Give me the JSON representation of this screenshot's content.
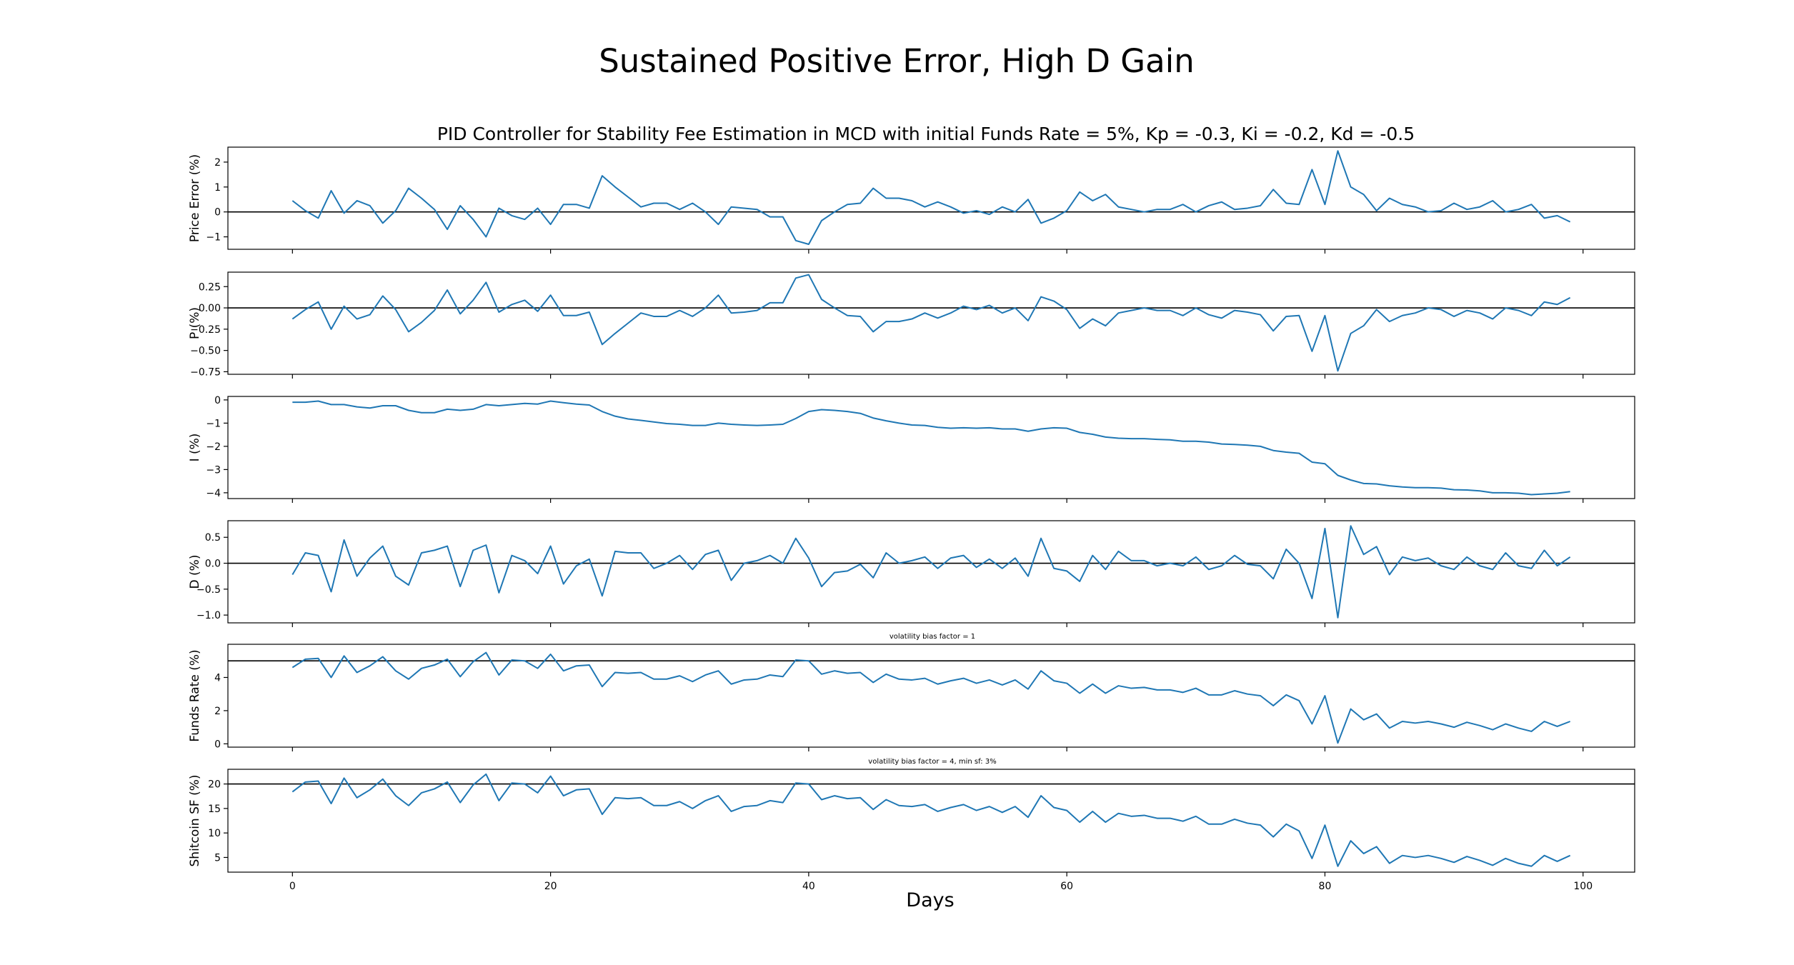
{
  "figure": {
    "suptitle": "Sustained Positive Error, High D Gain",
    "xlabel": "Days",
    "line_color": "#1f77b4",
    "reference_color": "#000000"
  },
  "chart_data": [
    {
      "type": "line",
      "title": "PID Controller for Stability Fee Estimation in MCD with initial Funds Rate = 5%, Kp = -0.3, Ki = -0.2, Kd = -0.5",
      "ylabel": "Price Error (%)",
      "annotation": "",
      "reference_line": 0,
      "xlim": [
        -5,
        104
      ],
      "ylim": [
        -1.5,
        2.6
      ],
      "yticks": [
        -1,
        0,
        1,
        2
      ],
      "ytick_labels": [
        "−1",
        "0",
        "1",
        "2"
      ],
      "values": [
        0.45,
        0.05,
        -0.25,
        0.85,
        -0.05,
        0.45,
        0.25,
        -0.45,
        0.05,
        0.95,
        0.55,
        0.1,
        -0.7,
        0.25,
        -0.3,
        -1.0,
        0.15,
        -0.15,
        -0.3,
        0.15,
        -0.5,
        0.3,
        0.3,
        0.15,
        1.45,
        1.0,
        0.6,
        0.2,
        0.35,
        0.35,
        0.1,
        0.35,
        0.0,
        -0.5,
        0.2,
        0.15,
        0.1,
        -0.2,
        -0.2,
        -1.15,
        -1.3,
        -0.35,
        0.0,
        0.3,
        0.35,
        0.95,
        0.55,
        0.55,
        0.45,
        0.2,
        0.4,
        0.2,
        -0.05,
        0.05,
        -0.1,
        0.2,
        0.0,
        0.5,
        -0.45,
        -0.25,
        0.05,
        0.8,
        0.45,
        0.7,
        0.2,
        0.1,
        0.0,
        0.1,
        0.1,
        0.3,
        0.0,
        0.25,
        0.4,
        0.1,
        0.15,
        0.25,
        0.9,
        0.35,
        0.3,
        1.7,
        0.3,
        2.45,
        1.0,
        0.7,
        0.05,
        0.55,
        0.3,
        0.2,
        0.0,
        0.05,
        0.35,
        0.1,
        0.2,
        0.45,
        0.0,
        0.1,
        0.3,
        -0.25,
        -0.15,
        -0.4
      ]
    },
    {
      "type": "line",
      "title": "",
      "ylabel": "P (%)",
      "annotation": "",
      "reference_line": 0,
      "xlim": [
        -5,
        104
      ],
      "ylim": [
        -0.78,
        0.42
      ],
      "yticks": [
        -0.75,
        -0.5,
        -0.25,
        0.0,
        0.25
      ],
      "ytick_labels": [
        "−0.75",
        "−0.50",
        "−0.25",
        "0.00",
        "0.25"
      ],
      "values": [
        -0.13,
        -0.02,
        0.07,
        -0.25,
        0.02,
        -0.13,
        -0.08,
        0.14,
        -0.02,
        -0.28,
        -0.17,
        -0.03,
        0.21,
        -0.07,
        0.09,
        0.3,
        -0.05,
        0.04,
        0.09,
        -0.04,
        0.15,
        -0.09,
        -0.09,
        -0.05,
        -0.43,
        -0.3,
        -0.18,
        -0.06,
        -0.1,
        -0.1,
        -0.03,
        -0.1,
        0.0,
        0.15,
        -0.06,
        -0.05,
        -0.03,
        0.06,
        0.06,
        0.35,
        0.39,
        0.1,
        0.0,
        -0.09,
        -0.1,
        -0.28,
        -0.16,
        -0.16,
        -0.13,
        -0.06,
        -0.12,
        -0.06,
        0.02,
        -0.02,
        0.03,
        -0.06,
        0.0,
        -0.15,
        0.13,
        0.08,
        -0.02,
        -0.24,
        -0.13,
        -0.21,
        -0.06,
        -0.03,
        0.0,
        -0.03,
        -0.03,
        -0.09,
        0.0,
        -0.08,
        -0.12,
        -0.03,
        -0.05,
        -0.08,
        -0.27,
        -0.1,
        -0.09,
        -0.51,
        -0.09,
        -0.74,
        -0.3,
        -0.21,
        -0.02,
        -0.16,
        -0.09,
        -0.06,
        0.0,
        -0.02,
        -0.1,
        -0.03,
        -0.06,
        -0.13,
        0.0,
        -0.03,
        -0.09,
        0.07,
        0.04,
        0.12
      ]
    },
    {
      "type": "line",
      "title": "",
      "ylabel": "I (%)",
      "annotation": "",
      "reference_line": null,
      "xlim": [
        -5,
        104
      ],
      "ylim": [
        -4.25,
        0.15
      ],
      "yticks": [
        -4,
        -3,
        -2,
        -1,
        0
      ],
      "ytick_labels": [
        "−4",
        "−3",
        "−2",
        "−1",
        "0"
      ],
      "values": [
        -0.1,
        -0.1,
        -0.05,
        -0.2,
        -0.2,
        -0.3,
        -0.35,
        -0.25,
        -0.25,
        -0.45,
        -0.55,
        -0.55,
        -0.4,
        -0.45,
        -0.4,
        -0.2,
        -0.25,
        -0.2,
        -0.15,
        -0.18,
        -0.05,
        -0.12,
        -0.18,
        -0.22,
        -0.5,
        -0.7,
        -0.82,
        -0.88,
        -0.95,
        -1.02,
        -1.05,
        -1.1,
        -1.1,
        -1.0,
        -1.05,
        -1.08,
        -1.1,
        -1.08,
        -1.05,
        -0.8,
        -0.5,
        -0.42,
        -0.45,
        -0.5,
        -0.58,
        -0.78,
        -0.9,
        -1.0,
        -1.08,
        -1.1,
        -1.18,
        -1.22,
        -1.2,
        -1.22,
        -1.2,
        -1.25,
        -1.25,
        -1.35,
        -1.25,
        -1.2,
        -1.22,
        -1.4,
        -1.48,
        -1.6,
        -1.65,
        -1.67,
        -1.67,
        -1.7,
        -1.72,
        -1.78,
        -1.78,
        -1.82,
        -1.9,
        -1.92,
        -1.95,
        -2.0,
        -2.18,
        -2.25,
        -2.3,
        -2.68,
        -2.75,
        -3.25,
        -3.45,
        -3.6,
        -3.62,
        -3.7,
        -3.75,
        -3.78,
        -3.78,
        -3.8,
        -3.87,
        -3.88,
        -3.92,
        -4.0,
        -4.0,
        -4.02,
        -4.08,
        -4.05,
        -4.02,
        -3.95
      ]
    },
    {
      "type": "line",
      "title": "",
      "ylabel": "D (%)",
      "annotation": "",
      "reference_line": 0,
      "xlim": [
        -5,
        104
      ],
      "ylim": [
        -1.15,
        0.82
      ],
      "yticks": [
        -1.0,
        -0.5,
        0.0,
        0.5
      ],
      "ytick_labels": [
        "−1.0",
        "−0.5",
        "0.0",
        "0.5"
      ],
      "values": [
        -0.22,
        0.2,
        0.15,
        -0.55,
        0.45,
        -0.25,
        0.1,
        0.33,
        -0.25,
        -0.42,
        0.2,
        0.25,
        0.33,
        -0.45,
        0.25,
        0.35,
        -0.57,
        0.15,
        0.05,
        -0.2,
        0.33,
        -0.4,
        -0.05,
        0.08,
        -0.63,
        0.23,
        0.2,
        0.2,
        -0.1,
        0.0,
        0.15,
        -0.12,
        0.17,
        0.25,
        -0.33,
        0.0,
        0.05,
        0.15,
        0.0,
        0.48,
        0.1,
        -0.45,
        -0.18,
        -0.15,
        -0.02,
        -0.28,
        0.2,
        0.0,
        0.05,
        0.12,
        -0.1,
        0.1,
        0.15,
        -0.08,
        0.08,
        -0.1,
        0.1,
        -0.25,
        0.48,
        -0.1,
        -0.15,
        -0.35,
        0.15,
        -0.12,
        0.23,
        0.05,
        0.05,
        -0.05,
        0.0,
        -0.05,
        0.12,
        -0.12,
        -0.05,
        0.15,
        -0.02,
        -0.05,
        -0.3,
        0.27,
        0.0,
        -0.68,
        0.67,
        -1.05,
        0.72,
        0.17,
        0.32,
        -0.22,
        0.12,
        0.05,
        0.1,
        -0.05,
        -0.12,
        0.12,
        -0.05,
        -0.12,
        0.2,
        -0.05,
        -0.1,
        0.25,
        -0.05,
        0.12
      ]
    },
    {
      "type": "line",
      "title": "",
      "ylabel": "Funds Rate (%)",
      "annotation": "volatility bias factor = 1",
      "reference_line": 5,
      "xlim": [
        -5,
        104
      ],
      "ylim": [
        -0.2,
        6.0
      ],
      "yticks": [
        0,
        2,
        4
      ],
      "ytick_labels": [
        "0",
        "2",
        "4"
      ],
      "values": [
        4.6,
        5.1,
        5.15,
        4.0,
        5.3,
        4.3,
        4.7,
        5.25,
        4.4,
        3.9,
        4.55,
        4.75,
        5.1,
        4.05,
        4.95,
        5.5,
        4.15,
        5.05,
        5.0,
        4.55,
        5.4,
        4.4,
        4.7,
        4.75,
        3.45,
        4.3,
        4.25,
        4.3,
        3.9,
        3.9,
        4.1,
        3.75,
        4.15,
        4.4,
        3.6,
        3.85,
        3.9,
        4.15,
        4.05,
        5.05,
        5.0,
        4.2,
        4.4,
        4.25,
        4.3,
        3.7,
        4.2,
        3.9,
        3.85,
        3.95,
        3.6,
        3.8,
        3.95,
        3.65,
        3.85,
        3.55,
        3.85,
        3.3,
        4.4,
        3.8,
        3.65,
        3.05,
        3.6,
        3.05,
        3.5,
        3.35,
        3.4,
        3.25,
        3.25,
        3.1,
        3.35,
        2.95,
        2.95,
        3.2,
        3.0,
        2.9,
        2.3,
        2.95,
        2.6,
        1.2,
        2.9,
        0.05,
        2.1,
        1.45,
        1.8,
        0.95,
        1.35,
        1.25,
        1.35,
        1.2,
        1.0,
        1.3,
        1.1,
        0.85,
        1.2,
        0.95,
        0.75,
        1.35,
        1.05,
        1.35
      ]
    },
    {
      "type": "line",
      "title": "",
      "ylabel": "Shitcoin SF (%)",
      "annotation": "volatility bias factor = 4, min sf: 3%",
      "reference_line": 20,
      "xlim": [
        -5,
        104
      ],
      "ylim": [
        2.0,
        23.0
      ],
      "yticks": [
        5,
        10,
        15,
        20
      ],
      "ytick_labels": [
        "5",
        "10",
        "15",
        "20"
      ],
      "values": [
        18.4,
        20.4,
        20.6,
        16.0,
        21.2,
        17.2,
        18.8,
        21.0,
        17.6,
        15.6,
        18.2,
        19.0,
        20.4,
        16.2,
        19.8,
        22.0,
        16.6,
        20.2,
        20.0,
        18.2,
        21.6,
        17.6,
        18.8,
        19.0,
        13.8,
        17.2,
        17.0,
        17.2,
        15.6,
        15.6,
        16.4,
        15.0,
        16.6,
        17.6,
        14.4,
        15.4,
        15.6,
        16.6,
        16.2,
        20.2,
        20.0,
        16.8,
        17.6,
        17.0,
        17.2,
        14.8,
        16.8,
        15.6,
        15.4,
        15.8,
        14.4,
        15.2,
        15.8,
        14.6,
        15.4,
        14.2,
        15.4,
        13.2,
        17.6,
        15.2,
        14.6,
        12.2,
        14.4,
        12.2,
        14.0,
        13.4,
        13.6,
        13.0,
        13.0,
        12.4,
        13.4,
        11.8,
        11.8,
        12.8,
        12.0,
        11.6,
        9.2,
        11.8,
        10.4,
        4.8,
        11.6,
        3.2,
        8.4,
        5.8,
        7.2,
        3.8,
        5.4,
        5.0,
        5.4,
        4.8,
        4.0,
        5.2,
        4.4,
        3.4,
        4.8,
        3.8,
        3.2,
        5.4,
        4.2,
        5.4
      ]
    }
  ],
  "xaxis": {
    "ticks": [
      0,
      20,
      40,
      60,
      80,
      100
    ],
    "tick_labels": [
      "0",
      "20",
      "40",
      "60",
      "80",
      "100"
    ]
  }
}
